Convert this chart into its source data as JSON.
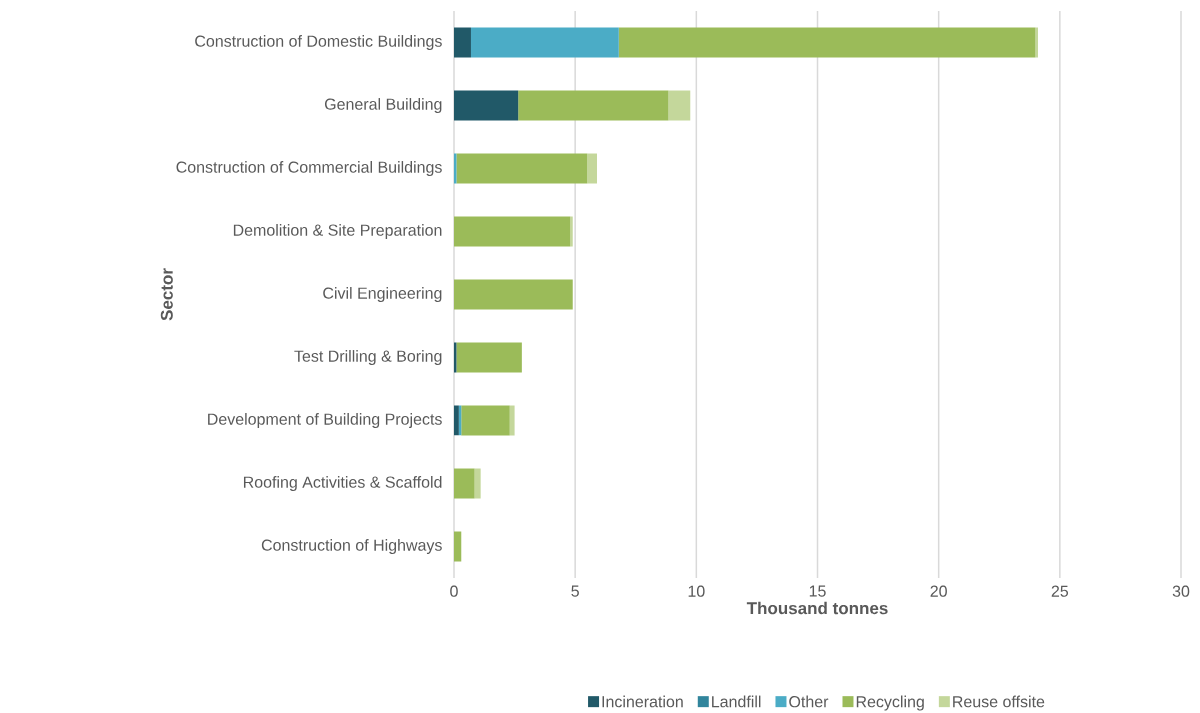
{
  "chart_data": {
    "type": "bar",
    "orientation": "horizontal",
    "stacked": true,
    "xlabel": "Thousand tonnes",
    "ylabel": "Sector",
    "categories": [
      "Construction of Domestic Buildings",
      "General Building",
      "Construction of Commercial Buildings",
      "Demolition & Site Preparation",
      "Civil Engineering",
      "Test Drilling & Boring",
      "Development of Building Projects",
      "Roofing Activities & Scaffold",
      "Construction of Highways"
    ],
    "series": [
      {
        "name": "Incineration",
        "color": "#215968",
        "values": [
          0.7,
          2.65,
          0,
          0,
          0,
          0.1,
          0.2,
          0,
          0
        ]
      },
      {
        "name": "Landfill",
        "color": "#31859c",
        "values": [
          0,
          0,
          0,
          0,
          0,
          0,
          0,
          0,
          0
        ]
      },
      {
        "name": "Other",
        "color": "#4bacc6",
        "values": [
          6.1,
          0,
          0.1,
          0,
          0,
          0,
          0.1,
          0,
          0
        ]
      },
      {
        "name": "Recycling",
        "color": "#9bbb59",
        "values": [
          17.2,
          6.2,
          5.4,
          4.8,
          4.9,
          2.7,
          2.0,
          0.85,
          0.3
        ]
      },
      {
        "name": "Reuse offsite",
        "color": "#c4d79b",
        "values": [
          0.1,
          0.9,
          0.4,
          0.1,
          0,
          0,
          0.2,
          0.25,
          0
        ]
      }
    ],
    "xlim": [
      0,
      30
    ],
    "xticks": [
      0,
      5,
      10,
      15,
      20,
      25,
      30
    ],
    "grid": "x",
    "legend": "bottom"
  }
}
